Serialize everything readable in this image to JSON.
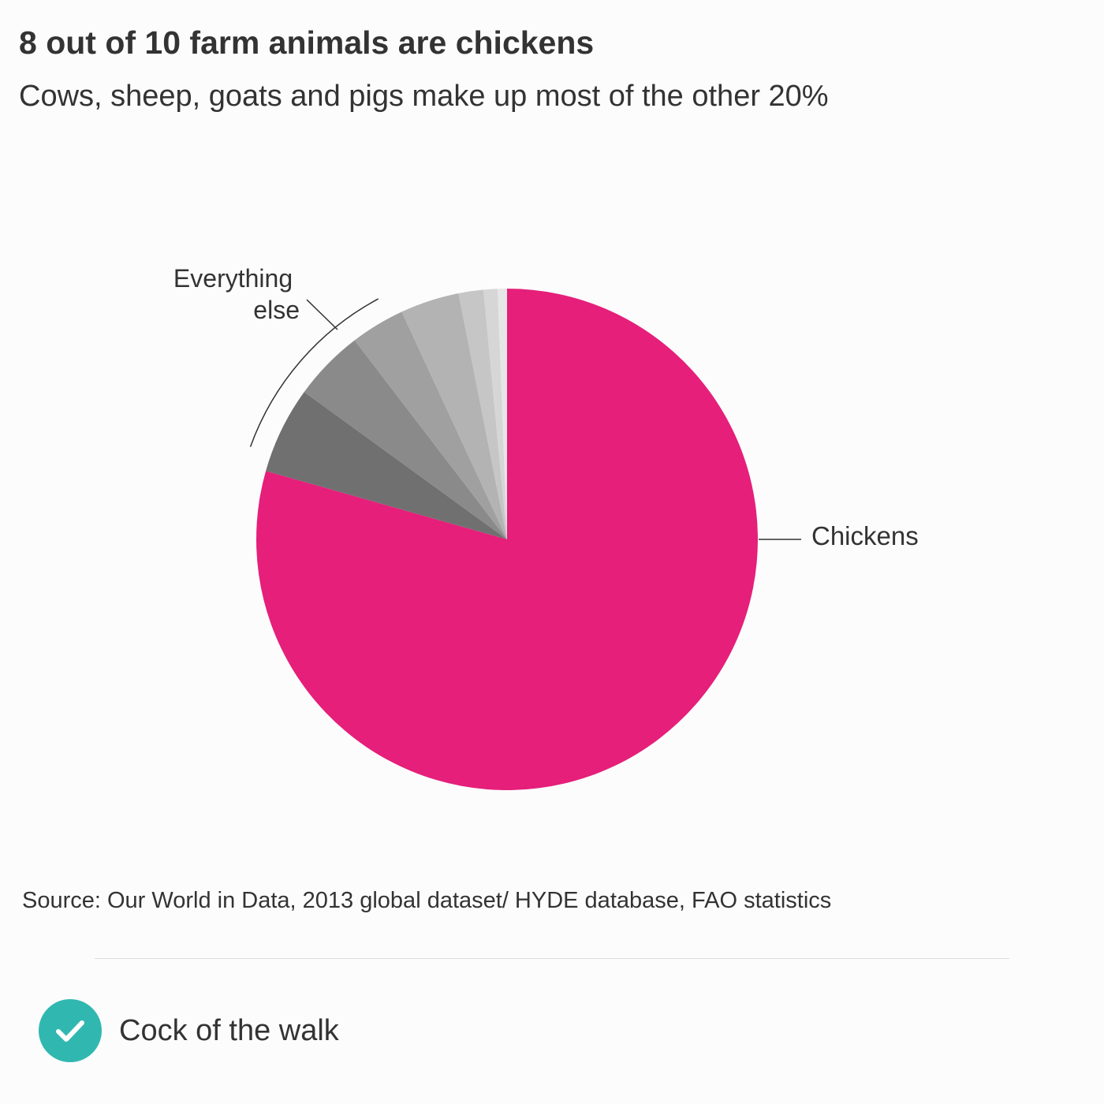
{
  "title": "8 out of 10 farm animals are chickens",
  "subtitle": "Cows, sheep, goats and pigs make up most of the other 20%",
  "source": "Source: Our World in Data, 2013 global dataset/ HYDE database, FAO statistics",
  "verdict": {
    "text": "Cock of the walk",
    "icon": "check-icon",
    "icon_color": "#30b8b0"
  },
  "chart_data": {
    "type": "pie",
    "title": "8 out of 10 farm animals are chickens",
    "start": "12 o'clock",
    "direction": "clockwise",
    "slices": [
      {
        "label": "Chickens",
        "value": 79.4,
        "color": "#e51f7a"
      },
      {
        "label": "",
        "value": 5.6,
        "color": "#707070"
      },
      {
        "label": "",
        "value": 4.6,
        "color": "#8a8a8a"
      },
      {
        "label": "",
        "value": 3.5,
        "color": "#a0a0a0"
      },
      {
        "label": "",
        "value": 3.8,
        "color": "#b3b3b3"
      },
      {
        "label": "",
        "value": 1.6,
        "color": "#c6c6c6"
      },
      {
        "label": "",
        "value": 0.9,
        "color": "#d6d6d6"
      },
      {
        "label": "",
        "value": 0.6,
        "color": "#e6e6e6"
      }
    ],
    "annotations": [
      {
        "text": "Chickens",
        "refers_to": "Chickens"
      },
      {
        "text": "Everything else",
        "refers_to": "all non-chicken slices"
      }
    ]
  }
}
